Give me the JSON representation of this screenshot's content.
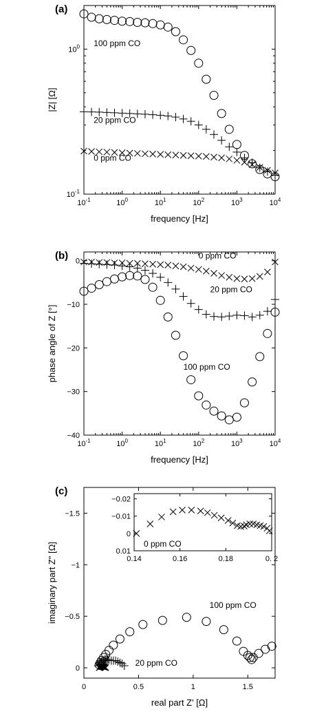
{
  "chart_data": [
    {
      "type": "scatter",
      "panel_label": "(a)",
      "xlabel": "frequency [Hz]",
      "ylabel": "|Z| [Ω]",
      "xscale": "log",
      "yscale": "log",
      "xlim": [
        0.1,
        10000
      ],
      "ylim": [
        0.1,
        2
      ],
      "x_ticks": [
        0.1,
        1,
        10,
        100,
        1000,
        10000
      ],
      "x_tick_labels": [
        [
          "10",
          "-1"
        ],
        [
          "10",
          "0"
        ],
        [
          "10",
          "1"
        ],
        [
          "10",
          "2"
        ],
        [
          "10",
          "3"
        ],
        [
          "10",
          "4"
        ]
      ],
      "y_ticks": [
        0.1,
        1
      ],
      "y_tick_labels": [
        [
          "10",
          "-1"
        ],
        [
          "10",
          "0"
        ]
      ],
      "grid": false,
      "annotations": [
        {
          "text": "100 ppm CO",
          "x": 0.18,
          "y": 1.05
        },
        {
          "text": "20 ppm CO",
          "x": 0.18,
          "y": 0.31
        },
        {
          "text": "0 ppm CO",
          "x": 0.18,
          "y": 0.17
        }
      ],
      "series": [
        {
          "marker": "o",
          "x": [
            0.1,
            0.158,
            0.251,
            0.398,
            0.631,
            1,
            1.58,
            2.51,
            3.98,
            6.31,
            10,
            15.8,
            25.1,
            39.8,
            63.1,
            100,
            158,
            251,
            398,
            631,
            1000,
            1580,
            2510,
            3980,
            6310,
            10000
          ],
          "y": [
            1.75,
            1.66,
            1.62,
            1.6,
            1.58,
            1.56,
            1.55,
            1.53,
            1.52,
            1.5,
            1.47,
            1.42,
            1.32,
            1.16,
            0.98,
            0.8,
            0.62,
            0.48,
            0.36,
            0.28,
            0.22,
            0.185,
            0.162,
            0.148,
            0.138,
            0.132
          ]
        },
        {
          "marker": "+",
          "x": [
            0.1,
            0.158,
            0.251,
            0.398,
            0.631,
            1,
            1.58,
            2.51,
            3.98,
            6.31,
            10,
            15.8,
            25.1,
            39.8,
            63.1,
            100,
            158,
            251,
            398,
            631,
            1000,
            1580,
            2510,
            3980,
            6310,
            10000
          ],
          "y": [
            0.37,
            0.369,
            0.368,
            0.366,
            0.364,
            0.362,
            0.36,
            0.358,
            0.356,
            0.353,
            0.35,
            0.346,
            0.34,
            0.33,
            0.318,
            0.3,
            0.28,
            0.258,
            0.235,
            0.212,
            0.195,
            0.178,
            0.165,
            0.152,
            0.143,
            0.135
          ]
        },
        {
          "marker": "x",
          "x": [
            0.1,
            0.158,
            0.251,
            0.398,
            0.631,
            1,
            1.58,
            2.51,
            3.98,
            6.31,
            10,
            15.8,
            25.1,
            39.8,
            63.1,
            100,
            158,
            251,
            398,
            631,
            1000,
            1580,
            2510,
            3980,
            6310,
            10000
          ],
          "y": [
            0.198,
            0.197,
            0.196,
            0.195,
            0.194,
            0.193,
            0.192,
            0.191,
            0.19,
            0.189,
            0.188,
            0.187,
            0.186,
            0.185,
            0.184,
            0.183,
            0.182,
            0.18,
            0.178,
            0.175,
            0.171,
            0.166,
            0.16,
            0.153,
            0.146,
            0.14
          ]
        }
      ]
    },
    {
      "type": "scatter",
      "panel_label": "(b)",
      "xlabel": "frequency [Hz]",
      "ylabel": "phase angle of Z  [°]",
      "xscale": "log",
      "xlim": [
        0.1,
        10000
      ],
      "ylim": [
        -40,
        2
      ],
      "x_ticks": [
        0.1,
        1,
        10,
        100,
        1000,
        10000
      ],
      "x_tick_labels": [
        [
          "10",
          "-1"
        ],
        [
          "10",
          "0"
        ],
        [
          "10",
          "1"
        ],
        [
          "10",
          "2"
        ],
        [
          "10",
          "3"
        ],
        [
          "10",
          "4"
        ]
      ],
      "y_ticks": [
        0,
        -10,
        -20,
        -30,
        -40
      ],
      "y_tick_labels": [
        "0",
        "−10",
        "−20",
        "−30",
        "−40"
      ],
      "grid": false,
      "annotations": [
        {
          "text": "0 ppm CO",
          "x": 100,
          "y": 0.5
        },
        {
          "text": "20 ppm CO",
          "x": 200,
          "y": -7.2
        },
        {
          "text": "100 ppm CO",
          "x": 40,
          "y": -25
        }
      ],
      "series": [
        {
          "marker": "o",
          "x": [
            0.1,
            0.158,
            0.251,
            0.398,
            0.631,
            1,
            1.58,
            2.51,
            3.98,
            6.31,
            10,
            15.8,
            25.1,
            39.8,
            63.1,
            100,
            158,
            251,
            398,
            631,
            1000,
            1580,
            2510,
            3980,
            6310,
            10000
          ],
          "y": [
            -7,
            -6.3,
            -5.5,
            -4.8,
            -4.2,
            -3.7,
            -3.4,
            -3.5,
            -4.3,
            -6.1,
            -9.1,
            -12.9,
            -17.1,
            -21.8,
            -27.3,
            -31,
            -33.1,
            -34.5,
            -35.6,
            -36.5,
            -35.9,
            -32.6,
            -27.8,
            -22,
            -16.7,
            -11.8
          ]
        },
        {
          "marker": "+",
          "x": [
            0.1,
            0.158,
            0.251,
            0.398,
            0.631,
            1,
            1.58,
            2.51,
            3.98,
            6.31,
            10,
            15.8,
            25.1,
            39.8,
            63.1,
            100,
            158,
            251,
            398,
            631,
            1000,
            1580,
            2510,
            3980,
            6310,
            10000
          ],
          "y": [
            -0.6,
            -0.7,
            -0.8,
            -0.9,
            -1,
            -1.2,
            -1.4,
            -1.7,
            -2.2,
            -2.9,
            -3.8,
            -5,
            -6.5,
            -8.2,
            -9.8,
            -11.2,
            -12.3,
            -12.8,
            -12.9,
            -12.7,
            -12.5,
            -12.6,
            -12.9,
            -12.5,
            -11.6,
            -8.9
          ]
        },
        {
          "marker": "x",
          "x": [
            0.1,
            0.158,
            0.251,
            0.398,
            0.631,
            1,
            1.58,
            2.51,
            3.98,
            6.31,
            10,
            15.8,
            25.1,
            39.8,
            63.1,
            100,
            158,
            251,
            398,
            631,
            1000,
            1580,
            2510,
            3980,
            6310,
            10000
          ],
          "y": [
            -0.3,
            -0.3,
            -0.4,
            -0.4,
            -0.5,
            -0.5,
            -0.6,
            -0.6,
            -0.7,
            -0.8,
            -0.9,
            -1,
            -1.2,
            -1.4,
            -1.7,
            -2,
            -2.4,
            -2.9,
            -3.4,
            -3.8,
            -4.1,
            -4.2,
            -4.1,
            -3.6,
            -2.6,
            -0.3
          ]
        }
      ]
    },
    {
      "type": "scatter",
      "panel_label": "(c)",
      "xlabel": "real part Z'  [Ω]",
      "ylabel": "imaginary part Z\"  [Ω]",
      "xlim": [
        0,
        1.75
      ],
      "ylim": [
        0.1,
        -1.75
      ],
      "x_ticks": [
        0,
        0.5,
        1,
        1.5
      ],
      "x_tick_labels": [
        "0",
        "0.5",
        "1",
        "1.5"
      ],
      "y_ticks": [
        0,
        -0.5,
        -1,
        -1.5
      ],
      "y_tick_labels": [
        "0",
        "−0.5",
        "−1",
        "−1.5"
      ],
      "grid": false,
      "annotations": [
        {
          "text": "100 ppm CO",
          "x": 1.15,
          "y": -0.58
        },
        {
          "text": "20 ppm CO",
          "x": 0.47,
          "y": -0.02
        }
      ],
      "series": [
        {
          "marker": "o",
          "x": [
            0.14,
            0.15,
            0.16,
            0.18,
            0.2,
            0.23,
            0.27,
            0.33,
            0.42,
            0.54,
            0.72,
            0.94,
            1.12,
            1.28,
            1.4,
            1.46,
            1.5,
            1.52,
            1.535,
            1.55,
            1.6,
            1.66,
            1.72
          ],
          "y": [
            -0.03,
            -0.05,
            -0.07,
            -0.1,
            -0.13,
            -0.17,
            -0.22,
            -0.28,
            -0.35,
            -0.42,
            -0.46,
            -0.49,
            -0.45,
            -0.37,
            -0.26,
            -0.16,
            -0.12,
            -0.1,
            -0.08,
            -0.1,
            -0.14,
            -0.18,
            -0.21
          ]
        },
        {
          "marker": "+",
          "x": [
            0.13,
            0.14,
            0.15,
            0.16,
            0.17,
            0.18,
            0.19,
            0.2,
            0.21,
            0.22,
            0.23,
            0.25,
            0.27,
            0.29,
            0.31,
            0.33,
            0.35,
            0.37
          ],
          "y": [
            -0.02,
            -0.04,
            -0.05,
            -0.06,
            -0.07,
            -0.07,
            -0.08,
            -0.08,
            -0.08,
            -0.08,
            -0.08,
            -0.07,
            -0.07,
            -0.07,
            -0.06,
            -0.05,
            -0.04,
            -0.02
          ]
        },
        {
          "marker": "x",
          "x": [
            0.14,
            0.145,
            0.15,
            0.155,
            0.16,
            0.165,
            0.17,
            0.175,
            0.18,
            0.185,
            0.19,
            0.195,
            0.2
          ],
          "y": [
            -0.001,
            -0.005,
            -0.009,
            -0.012,
            -0.013,
            -0.013,
            -0.012,
            -0.01,
            -0.008,
            -0.006,
            -0.004,
            -0.003,
            -0.002
          ]
        }
      ],
      "inset": {
        "annotation": "0 ppm CO",
        "xlim": [
          0.14,
          0.2
        ],
        "ylim": [
          0.01,
          -0.023
        ],
        "x_ticks": [
          0.14,
          0.16,
          0.18,
          0.2
        ],
        "x_tick_labels": [
          "0.14",
          "0.16",
          "0.18",
          "0. 2"
        ],
        "y_ticks": [
          0.01,
          0,
          -0.01,
          -0.02
        ],
        "y_tick_labels": [
          "0.01",
          "0",
          "−0.01",
          "−0.02"
        ],
        "series": [
          {
            "marker": "x",
            "x": [
              0.141,
              0.147,
              0.152,
              0.157,
              0.161,
              0.165,
              0.169,
              0.172,
              0.175,
              0.178,
              0.181,
              0.183,
              0.185,
              0.1865,
              0.188,
              0.189,
              0.1905,
              0.192,
              0.1935,
              0.195,
              0.1965,
              0.198,
              0.199
            ],
            "y": [
              0.0,
              -0.0055,
              -0.0095,
              -0.0125,
              -0.0135,
              -0.0135,
              -0.013,
              -0.012,
              -0.0105,
              -0.009,
              -0.0075,
              -0.006,
              -0.0045,
              -0.004,
              -0.0042,
              -0.005,
              -0.0055,
              -0.0055,
              -0.005,
              -0.0045,
              -0.004,
              -0.003,
              -0.0015
            ]
          }
        ]
      }
    }
  ]
}
